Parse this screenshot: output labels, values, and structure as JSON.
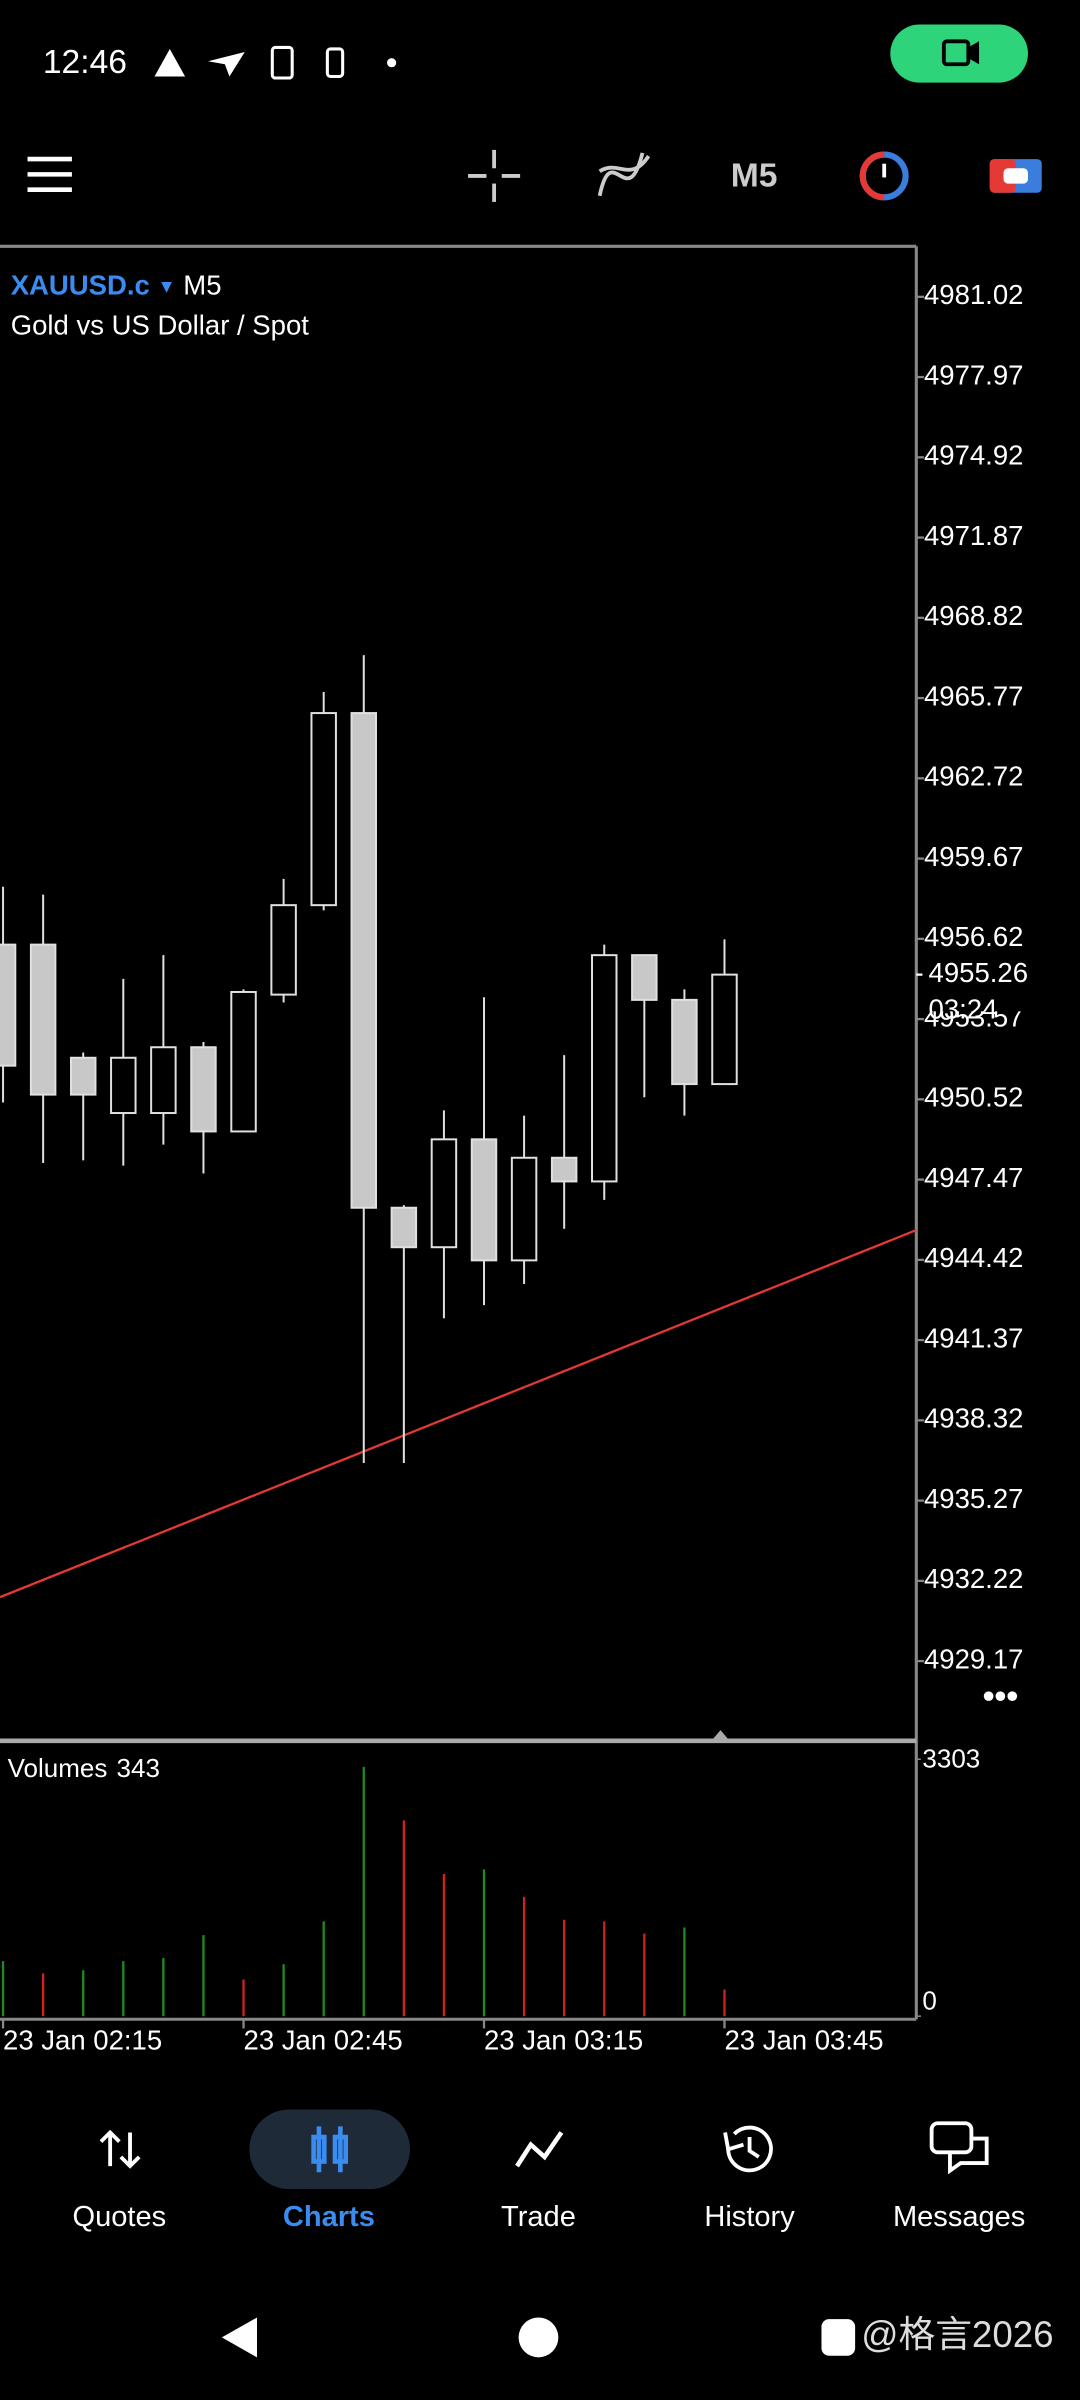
{
  "status_bar": {
    "time": "12:46"
  },
  "toolbar": {
    "timeframe": "M5"
  },
  "chart": {
    "type": "candlestick",
    "symbol": "XAUUSD.c",
    "timeframe": "M5",
    "description": "Gold vs US Dollar / Spot",
    "up_color": "#000000",
    "down_color": "#c8c8c8",
    "candles": [
      {
        "open": 4956.4,
        "high": 4958.6,
        "low": 4950.4,
        "close": 4951.8
      },
      {
        "open": 4956.4,
        "high": 4958.3,
        "low": 4948.1,
        "close": 4950.7
      },
      {
        "open": 4952.1,
        "high": 4952.3,
        "low": 4948.2,
        "close": 4950.7
      },
      {
        "open": 4950.0,
        "high": 4955.1,
        "low": 4948.0,
        "close": 4952.1
      },
      {
        "open": 4950.0,
        "high": 4956.0,
        "low": 4948.8,
        "close": 4952.5
      },
      {
        "open": 4952.5,
        "high": 4952.7,
        "low": 4947.7,
        "close": 4949.3
      },
      {
        "open": 4949.3,
        "high": 4954.7,
        "low": 4949.3,
        "close": 4954.6
      },
      {
        "open": 4954.5,
        "high": 4958.9,
        "low": 4954.2,
        "close": 4957.9
      },
      {
        "open": 4957.9,
        "high": 4966.0,
        "low": 4957.7,
        "close": 4965.2
      },
      {
        "open": 4965.2,
        "high": 4967.4,
        "low": 4936.7,
        "close": 4946.4
      },
      {
        "open": 4946.4,
        "high": 4946.5,
        "low": 4936.7,
        "close": 4944.9
      },
      {
        "open": 4944.9,
        "high": 4950.1,
        "low": 4942.2,
        "close": 4949.0
      },
      {
        "open": 4949.0,
        "high": 4954.4,
        "low": 4942.7,
        "close": 4944.4
      },
      {
        "open": 4944.4,
        "high": 4949.9,
        "low": 4943.5,
        "close": 4948.3
      },
      {
        "open": 4948.3,
        "high": 4952.2,
        "low": 4945.6,
        "close": 4947.4
      },
      {
        "open": 4947.4,
        "high": 4956.4,
        "low": 4946.7,
        "close": 4956.0
      },
      {
        "open": 4956.0,
        "high": 4956.0,
        "low": 4950.6,
        "close": 4954.3
      },
      {
        "open": 4954.3,
        "high": 4954.7,
        "low": 4949.9,
        "close": 4951.1
      },
      {
        "open": 4951.1,
        "high": 4956.6,
        "low": 4951.1,
        "close": 4955.26
      }
    ],
    "ylim": [
      4926.14,
      4982.94
    ],
    "yticks": [
      4981.02,
      4977.97,
      4974.92,
      4971.87,
      4968.82,
      4965.77,
      4962.72,
      4959.67,
      4956.62,
      4953.57,
      4950.52,
      4947.47,
      4944.42,
      4941.37,
      4938.32,
      4935.27,
      4932.22,
      4929.17
    ],
    "current_price": {
      "value": 4955.26,
      "timer": "03:24"
    },
    "trendline": {
      "color": "#e53935",
      "start": 4931.6,
      "end": 4945.55
    },
    "x_labels": [
      "23 Jan 02:15",
      "23 Jan 02:45",
      "23 Jan 03:15",
      "23 Jan 03:45"
    ]
  },
  "volumes": {
    "title": "Volumes",
    "values": [
      708,
      550,
      590,
      708,
      747,
      1042,
      472,
      668,
      1219,
      3205,
      2516,
      1828,
      1887,
      1533,
      1239,
      1219,
      1062,
      1140,
      343
    ],
    "colors": [
      "#1e8c1e",
      "#d42020",
      "#1e8c1e",
      "#1e8c1e",
      "#1e8c1e",
      "#1e8c1e",
      "#d42020",
      "#1e8c1e",
      "#1e8c1e",
      "#1e8c1e",
      "#d42020",
      "#d42020",
      "#1e8c1e",
      "#d42020",
      "#d42020",
      "#d42020",
      "#d42020",
      "#1e8c1e",
      "#d42020"
    ],
    "ylim": [
      0,
      3303
    ],
    "yticks": [
      3303,
      0
    ]
  },
  "nav": {
    "tabs": [
      "Quotes",
      "Charts",
      "Trade",
      "History",
      "Messages"
    ],
    "active": 1
  },
  "watermark": "@格言2026"
}
